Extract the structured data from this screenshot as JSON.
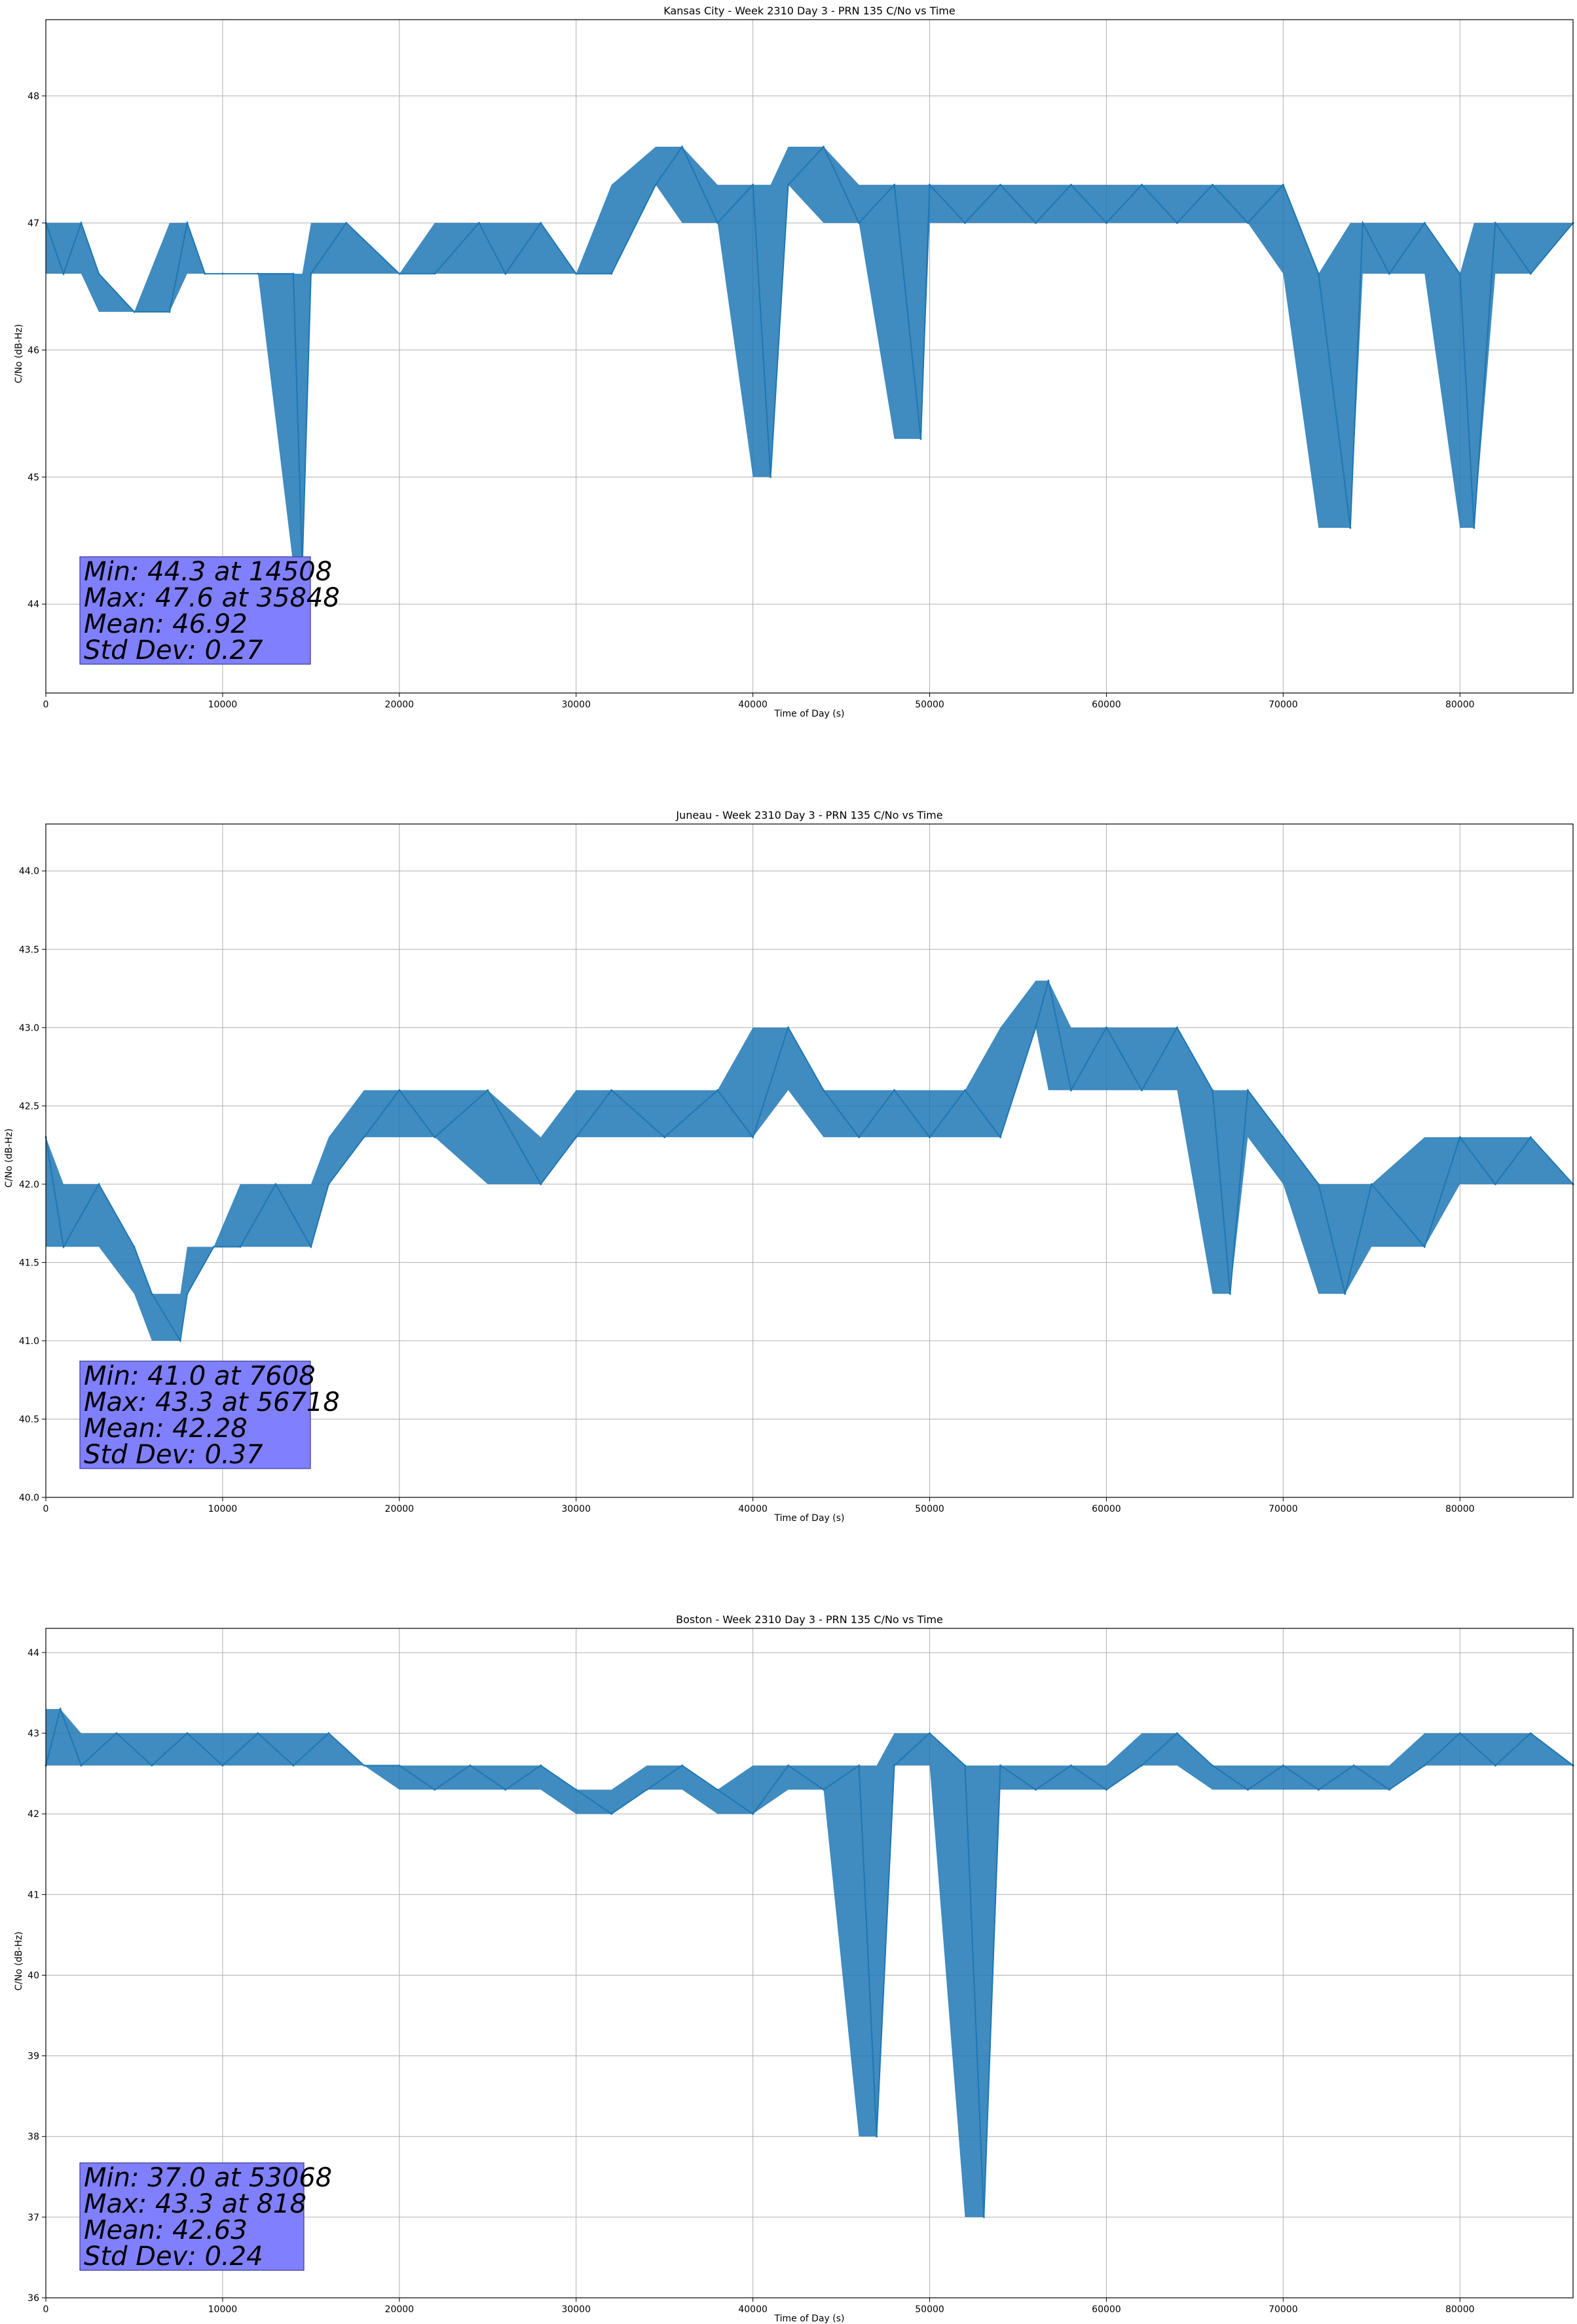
{
  "chart_data": [
    {
      "type": "line",
      "title": "Kansas City - Week 2310 Day 3 - PRN 135 C/No vs Time",
      "xlabel": "Time of Day (s)",
      "ylabel": "C/No (dB-Hz)",
      "xlim": [
        0,
        86400
      ],
      "ylim": [
        43.3,
        48.6
      ],
      "xticks": [
        "0",
        "10000",
        "20000",
        "30000",
        "40000",
        "50000",
        "60000",
        "70000",
        "80000"
      ],
      "yticks": [
        "44",
        "45",
        "46",
        "47",
        "48"
      ],
      "grid": true,
      "color": "#1f77b4",
      "stats": [
        "Min: 44.3 at 14508",
        "Max: 47.6 at 35848",
        "Mean: 46.92",
        "Std Dev: 0.27"
      ],
      "series": [
        {
          "x": [
            0,
            1000,
            2000,
            3000,
            5000,
            7000,
            8000,
            9000,
            10000,
            12000,
            14000,
            14508,
            15000,
            17000,
            20000,
            22000,
            24500,
            26000,
            28000,
            30000,
            32000,
            34500,
            36000,
            38000,
            40000,
            41000,
            42000,
            44000,
            46000,
            48000,
            49500,
            50000,
            52000,
            54000,
            56000,
            58000,
            60000,
            62000,
            64000,
            66000,
            68000,
            70000,
            72000,
            73800,
            74500,
            76000,
            78000,
            80000,
            80800,
            82000,
            84000,
            86400
          ],
          "y": [
            47.0,
            46.6,
            47.0,
            46.6,
            46.3,
            46.3,
            47.0,
            46.6,
            46.6,
            46.6,
            46.6,
            44.3,
            46.6,
            47.0,
            46.6,
            46.6,
            47.0,
            46.6,
            47.0,
            46.6,
            46.6,
            47.3,
            47.6,
            47.0,
            47.3,
            45.0,
            47.3,
            47.6,
            47.0,
            47.3,
            45.3,
            47.3,
            47.0,
            47.3,
            47.0,
            47.3,
            47.0,
            47.3,
            47.0,
            47.3,
            47.0,
            47.3,
            46.6,
            44.6,
            47.0,
            46.6,
            47.0,
            46.6,
            44.6,
            47.0,
            46.6,
            47.0
          ]
        }
      ]
    },
    {
      "type": "line",
      "title": "Juneau - Week 2310 Day 3 - PRN 135 C/No vs Time",
      "xlabel": "Time of Day (s)",
      "ylabel": "C/No (dB-Hz)",
      "xlim": [
        0,
        86400
      ],
      "ylim": [
        40.0,
        44.3
      ],
      "xticks": [
        "0",
        "10000",
        "20000",
        "30000",
        "40000",
        "50000",
        "60000",
        "70000",
        "80000"
      ],
      "yticks": [
        "40.0",
        "40.5",
        "41.0",
        "41.5",
        "42.0",
        "42.5",
        "43.0",
        "43.5",
        "44.0"
      ],
      "grid": true,
      "color": "#1f77b4",
      "stats": [
        "Min: 41.0 at 7608",
        "Max: 43.3 at 56718",
        "Mean: 42.28",
        "Std Dev: 0.37"
      ],
      "series": [
        {
          "x": [
            0,
            1000,
            3000,
            5000,
            6000,
            7608,
            8000,
            9500,
            11000,
            13000,
            15000,
            16000,
            18000,
            20000,
            22000,
            25000,
            28000,
            30000,
            32000,
            35000,
            38000,
            40000,
            42000,
            44000,
            46000,
            48000,
            50000,
            52000,
            54000,
            56000,
            56718,
            58000,
            60000,
            62000,
            64000,
            66000,
            67000,
            68000,
            70000,
            72000,
            73500,
            75000,
            78000,
            80000,
            82000,
            84000,
            86400
          ],
          "y": [
            42.3,
            41.6,
            42.0,
            41.6,
            41.3,
            41.0,
            41.3,
            41.6,
            41.6,
            42.0,
            41.6,
            42.0,
            42.3,
            42.6,
            42.3,
            42.6,
            42.0,
            42.3,
            42.6,
            42.3,
            42.6,
            42.3,
            43.0,
            42.6,
            42.3,
            42.6,
            42.3,
            42.6,
            42.3,
            43.0,
            43.3,
            42.6,
            43.0,
            42.6,
            43.0,
            42.6,
            41.3,
            42.6,
            42.3,
            42.0,
            41.3,
            42.0,
            41.6,
            42.3,
            42.0,
            42.3,
            42.0
          ]
        }
      ]
    },
    {
      "type": "line",
      "title": "Boston - Week 2310 Day 3 - PRN 135 C/No vs Time",
      "xlabel": "Time of Day (s)",
      "ylabel": "C/No (dB-Hz)",
      "xlim": [
        0,
        86400
      ],
      "ylim": [
        36.0,
        44.3
      ],
      "xticks": [
        "0",
        "10000",
        "20000",
        "30000",
        "40000",
        "50000",
        "60000",
        "70000",
        "80000"
      ],
      "yticks": [
        "36",
        "37",
        "38",
        "39",
        "40",
        "41",
        "42",
        "43",
        "44"
      ],
      "grid": true,
      "color": "#1f77b4",
      "stats": [
        "Min: 37.0 at 53068",
        "Max: 43.3 at 818",
        "Mean: 42.63",
        "Std Dev: 0.24"
      ],
      "series": [
        {
          "x": [
            0,
            818,
            2000,
            4000,
            6000,
            8000,
            10000,
            12000,
            14000,
            16000,
            18000,
            20000,
            22000,
            24000,
            26000,
            28000,
            30000,
            32000,
            34000,
            36000,
            38000,
            40000,
            42000,
            44000,
            46000,
            47000,
            48000,
            50000,
            52000,
            53068,
            54000,
            56000,
            58000,
            60000,
            62000,
            64000,
            66000,
            68000,
            70000,
            72000,
            74000,
            76000,
            78000,
            80000,
            82000,
            84000,
            86400
          ],
          "y": [
            42.6,
            43.3,
            42.6,
            43.0,
            42.6,
            43.0,
            42.6,
            43.0,
            42.6,
            43.0,
            42.6,
            42.6,
            42.3,
            42.6,
            42.3,
            42.6,
            42.3,
            42.0,
            42.3,
            42.6,
            42.3,
            42.0,
            42.6,
            42.3,
            42.6,
            38.0,
            42.6,
            43.0,
            42.6,
            37.0,
            42.6,
            42.3,
            42.6,
            42.3,
            42.6,
            43.0,
            42.6,
            42.3,
            42.6,
            42.3,
            42.6,
            42.3,
            42.6,
            43.0,
            42.6,
            43.0,
            42.6
          ]
        }
      ]
    }
  ]
}
